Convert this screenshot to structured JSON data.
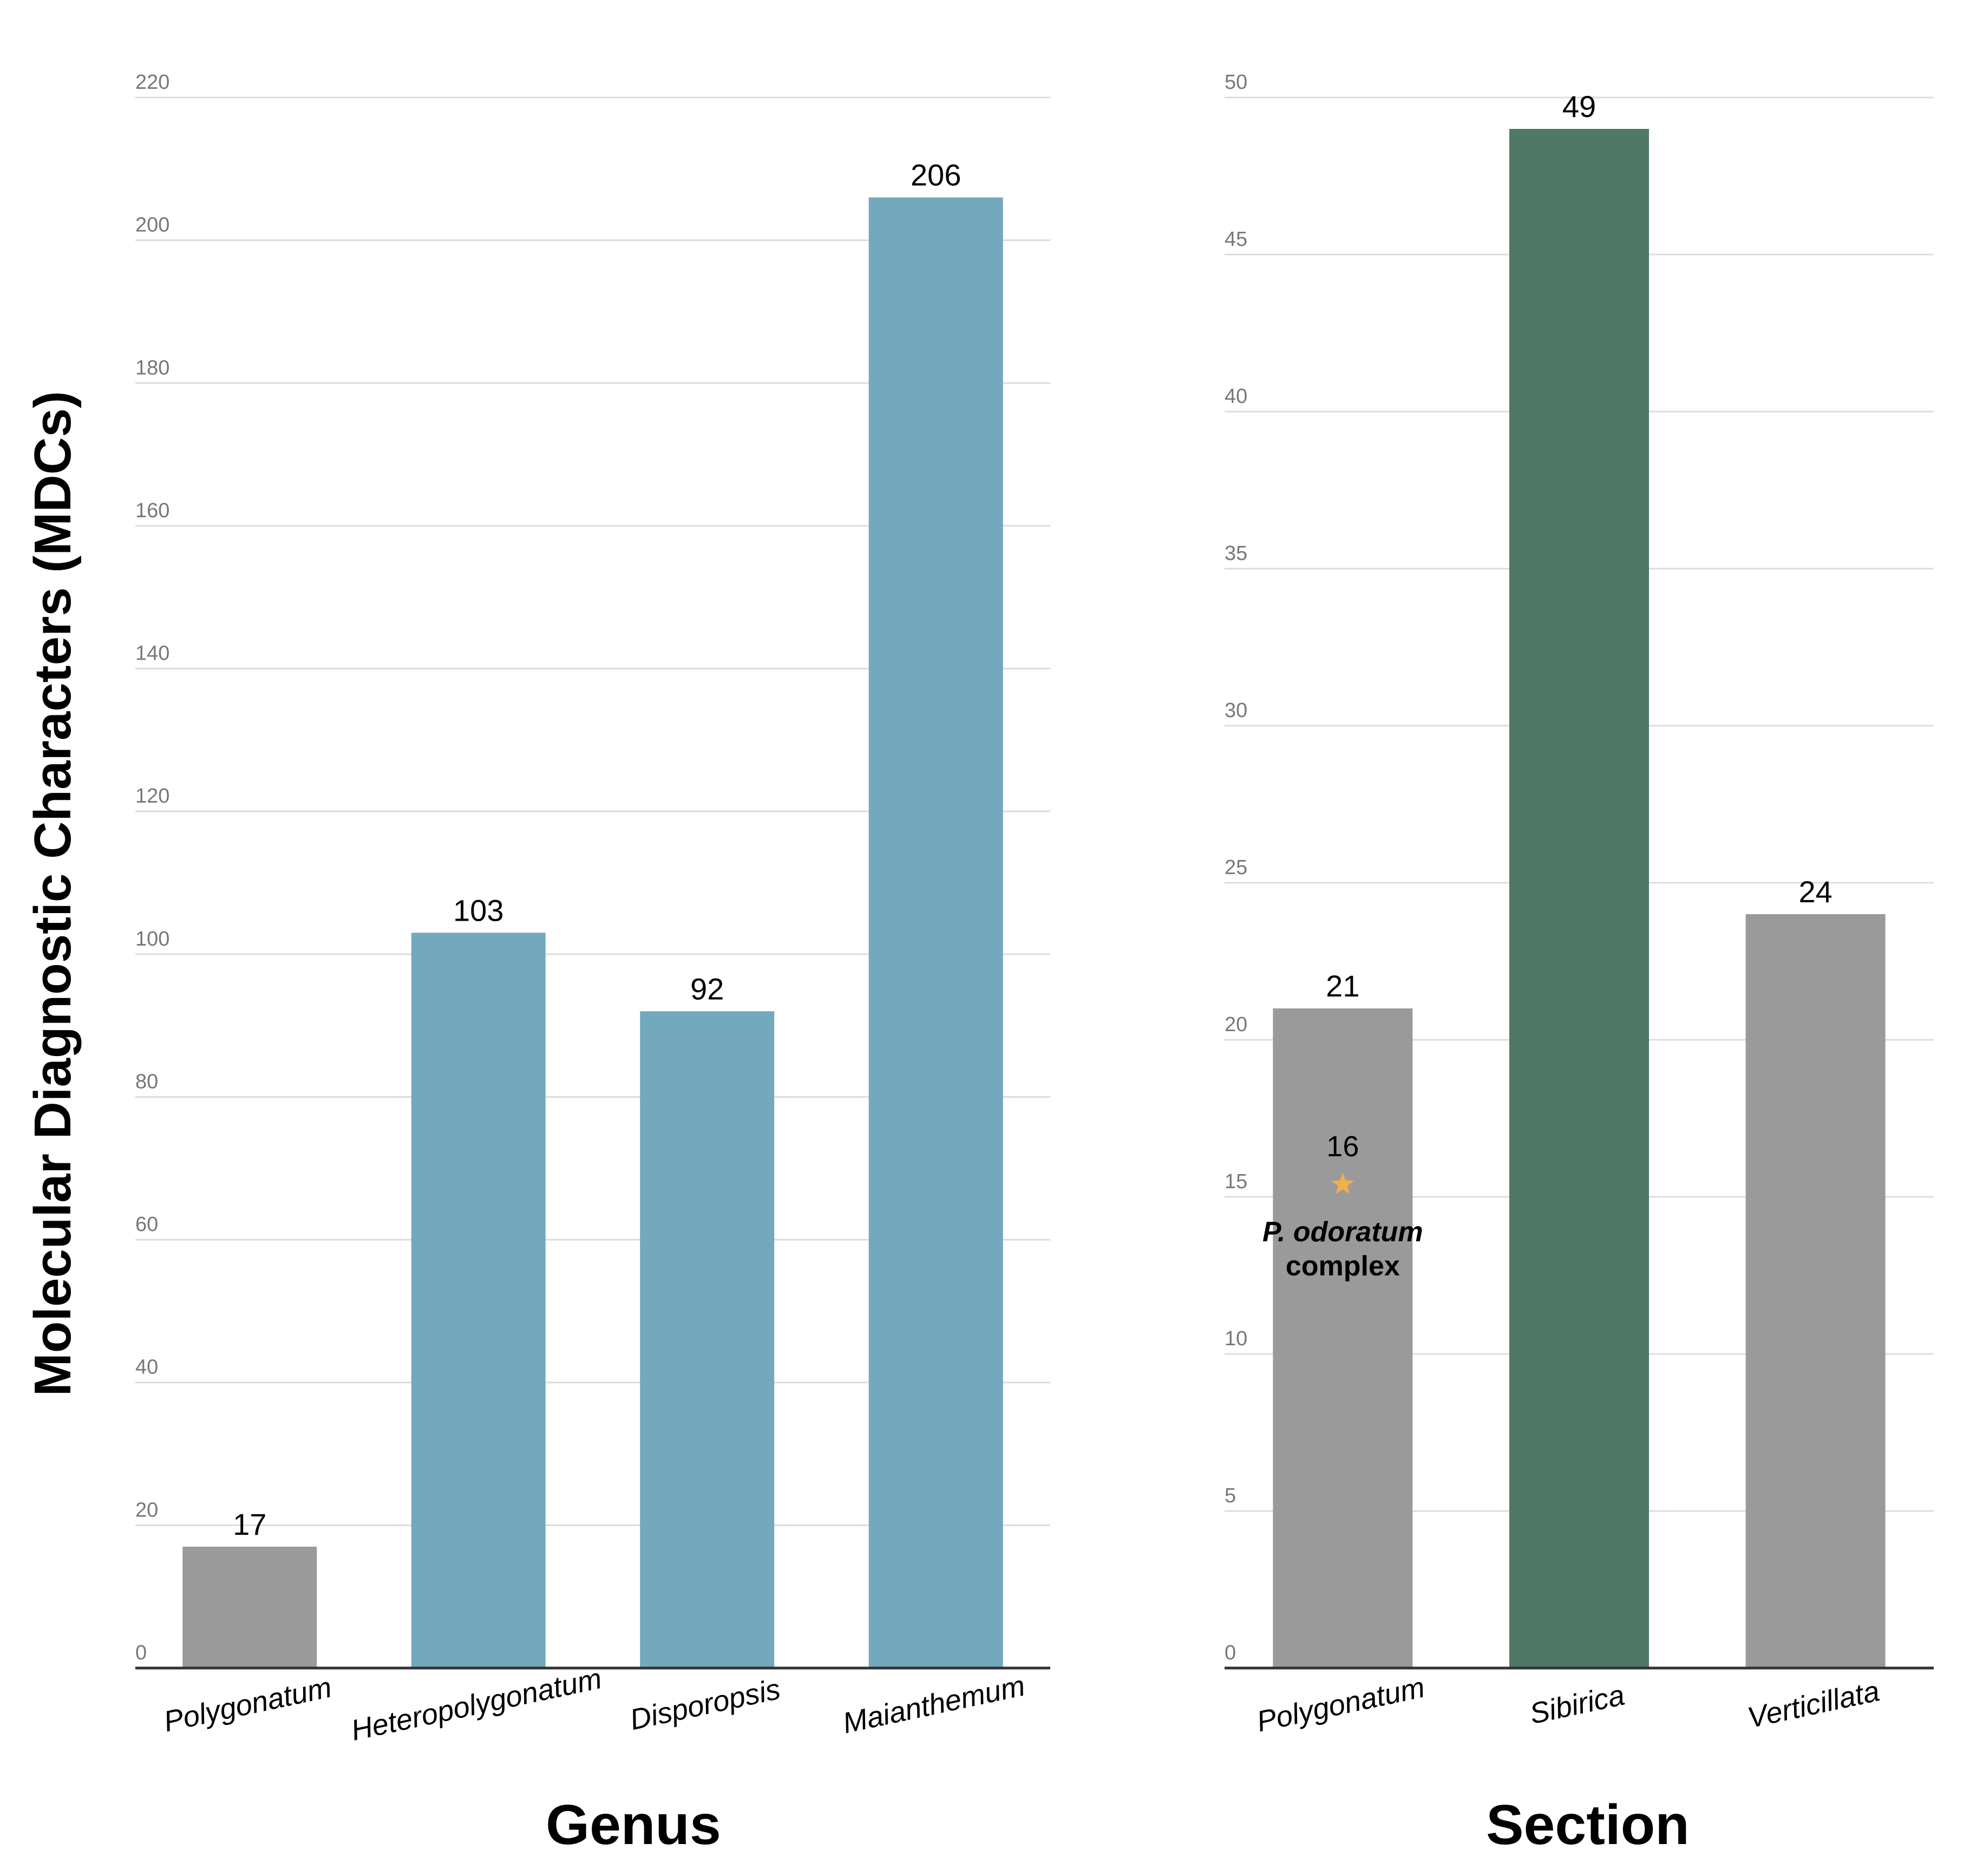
{
  "ylabel": "Molecular Diagnostic Characters (MDCs)",
  "chart_data": [
    {
      "type": "bar",
      "title": "",
      "xlabel": "Genus",
      "ylabel": "Molecular Diagnostic Characters (MDCs)",
      "ylim": [
        0,
        220
      ],
      "yticks": [
        0,
        20,
        40,
        60,
        80,
        100,
        120,
        140,
        160,
        180,
        200,
        220
      ],
      "grid": true,
      "categories": [
        "Polygonatum",
        "Heteropolygonatum",
        "Disporopsis",
        "Maianthemum"
      ],
      "values": [
        17,
        103,
        92,
        206
      ],
      "colors": [
        "#9a9a9a",
        "#72a9bd",
        "#72a9bd",
        "#72a9bd"
      ],
      "annotations": []
    },
    {
      "type": "bar",
      "title": "",
      "xlabel": "Section",
      "ylabel": "Molecular Diagnostic Characters (MDCs)",
      "ylim": [
        0,
        50
      ],
      "yticks": [
        0,
        5,
        10,
        15,
        20,
        25,
        30,
        35,
        40,
        45,
        50
      ],
      "grid": true,
      "categories": [
        "Polygonatum",
        "Sibirica",
        "Verticillata"
      ],
      "values": [
        21,
        49,
        24
      ],
      "colors": [
        "#9a9a9a",
        "#4f7866",
        "#9a9a9a"
      ],
      "annotations": [
        {
          "category": "Polygonatum",
          "marker": "star-icon",
          "marker_color": "#f2b04b",
          "value": 16,
          "label_italic": "P. odoratum",
          "label_bold": "complex"
        }
      ]
    }
  ]
}
